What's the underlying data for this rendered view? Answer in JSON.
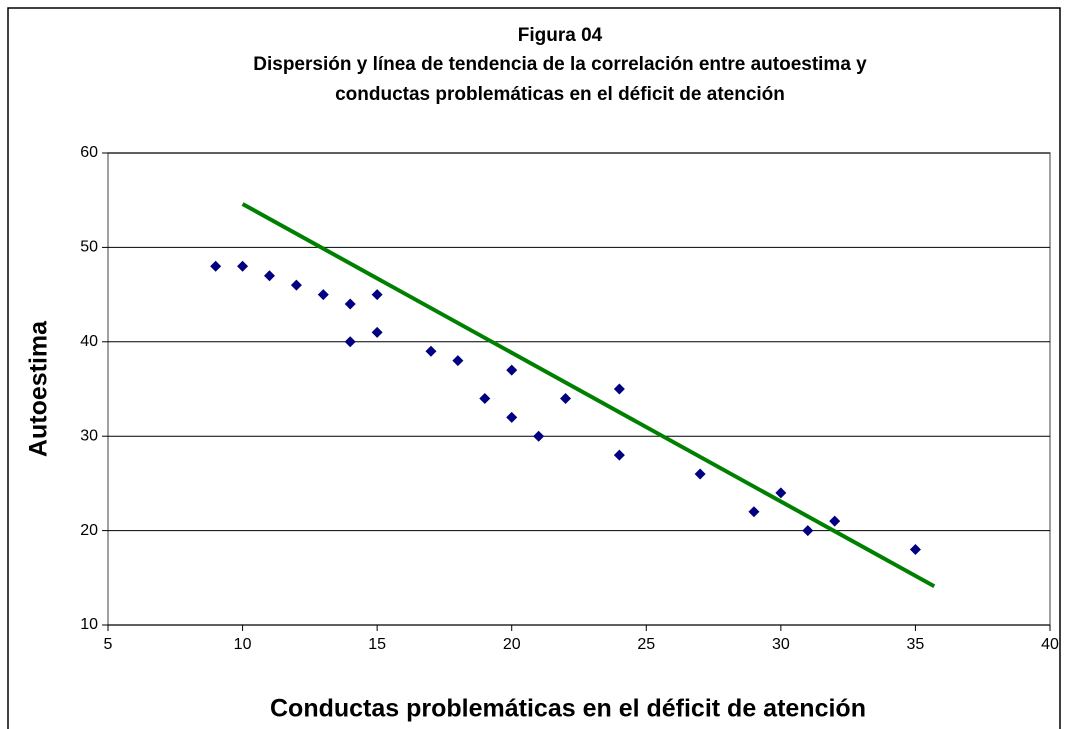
{
  "chart_data": {
    "type": "scatter",
    "title": "Figura 04",
    "subtitle": [
      "Dispersión y línea de tendencia de la correlación entre autoestima y",
      "conductas problemáticas en el déficit de atención"
    ],
    "xlabel": "Conductas problemáticas en el déficit de atención",
    "ylabel": "Autoestima",
    "series": [
      {
        "color": "#000080",
        "x": [
          9,
          10,
          11,
          12,
          13,
          14,
          15,
          14,
          15,
          17,
          18,
          19,
          20,
          20,
          21,
          22,
          24,
          24,
          27,
          29,
          30,
          31,
          32,
          35
        ],
        "values": [
          48,
          48,
          47,
          46,
          45,
          44,
          45,
          40,
          41,
          39,
          38,
          34,
          37,
          32,
          30,
          34,
          35,
          28,
          26,
          22,
          24,
          20,
          21,
          18
        ]
      }
    ],
    "trendline": {
      "color": "#008000",
      "x": [
        10,
        35.7
      ],
      "y": [
        54.6,
        14.1
      ]
    },
    "xlim": [
      5,
      40
    ],
    "xticks": [
      5,
      10,
      15,
      20,
      25,
      30,
      35,
      40
    ],
    "ylim": [
      10,
      60
    ],
    "yticks": [
      10,
      20,
      30,
      40,
      50,
      60
    ],
    "grid": true
  }
}
